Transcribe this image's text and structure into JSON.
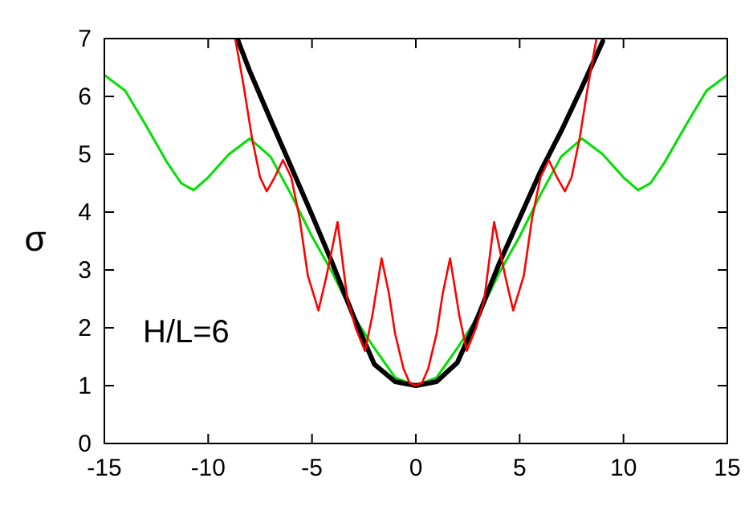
{
  "chart_data": {
    "type": "line",
    "ylabel": "σ",
    "xlim": [
      -15,
      15
    ],
    "xticks": [
      -15,
      -10,
      -5,
      0,
      5,
      10,
      15
    ],
    "ylim": [
      0,
      7
    ],
    "yticks": [
      0,
      1,
      2,
      3,
      4,
      5,
      6,
      7
    ],
    "grid": false,
    "marker": "none",
    "line_style": "solid",
    "annotations": [
      {
        "text": "H/L=6"
      }
    ],
    "series": [
      {
        "color": "#00e000",
        "x": [
          -15,
          -14,
          -13,
          -12,
          -11.3,
          -10.7,
          -10,
          -9,
          -8,
          -7,
          -6,
          -5,
          -4,
          -3,
          -2,
          -1,
          0,
          1,
          2,
          3,
          4,
          5,
          6,
          7,
          8,
          9,
          10,
          10.7,
          11.3,
          12,
          13,
          14,
          15
        ],
        "values": [
          6.37,
          6.1,
          5.5,
          4.87,
          4.5,
          4.38,
          4.6,
          5.0,
          5.27,
          4.96,
          4.3,
          3.58,
          2.94,
          2.2,
          1.65,
          1.14,
          1.0,
          1.14,
          1.65,
          2.2,
          2.94,
          3.58,
          4.3,
          4.96,
          5.27,
          5.0,
          4.6,
          4.38,
          4.5,
          4.87,
          5.5,
          6.1,
          6.37
        ]
      },
      {
        "color": "#000000",
        "x": [
          -8.6,
          -8,
          -7,
          -6,
          -5,
          -4,
          -3,
          -2,
          -1,
          0,
          1,
          2,
          3,
          4,
          5,
          6,
          7,
          8,
          9
        ],
        "values": [
          7,
          6.44,
          5.6,
          4.78,
          3.95,
          3.1,
          2.2,
          1.37,
          1.07,
          1.0,
          1.07,
          1.4,
          2.2,
          3.1,
          3.9,
          4.7,
          5.4,
          6.16,
          6.95
        ]
      },
      {
        "color": "#ff0000",
        "x": [
          -8.7,
          -8.3,
          -7.9,
          -7.5,
          -7.18,
          -6.8,
          -6.4,
          -6.0,
          -5.6,
          -5.2,
          -4.69,
          -4.3,
          -3.77,
          -3.3,
          -2.9,
          -2.45,
          -2.1,
          -1.65,
          -1.3,
          -1.0,
          -0.6,
          -0.3,
          0,
          0.3,
          0.6,
          1.0,
          1.3,
          1.65,
          2.1,
          2.45,
          2.9,
          3.3,
          3.77,
          4.3,
          4.69,
          5.2,
          5.6,
          6.0,
          6.4,
          6.8,
          7.18,
          7.5,
          7.9,
          8.3,
          8.7
        ],
        "values": [
          7,
          6.2,
          5.3,
          4.6,
          4.36,
          4.6,
          4.9,
          4.6,
          3.9,
          2.9,
          2.3,
          2.9,
          3.83,
          2.5,
          2.0,
          1.6,
          2.2,
          3.2,
          2.6,
          1.9,
          1.3,
          1.05,
          1.0,
          1.05,
          1.3,
          1.9,
          2.6,
          3.2,
          2.2,
          1.6,
          2.0,
          2.5,
          3.83,
          2.9,
          2.3,
          2.9,
          3.9,
          4.6,
          4.9,
          4.6,
          4.36,
          4.6,
          5.3,
          6.2,
          7
        ]
      }
    ]
  }
}
